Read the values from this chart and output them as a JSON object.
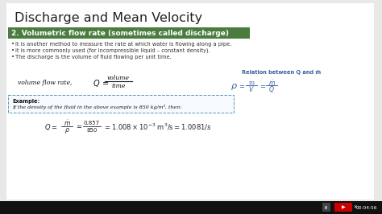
{
  "bg_color": "#e8e8e8",
  "slide_bg": "#ffffff",
  "title": "Discharge and Mean Velocity",
  "title_color": "#222222",
  "title_fontsize": 11.5,
  "section_bg": "#4a7c3f",
  "section_text": "2. Volumetric flow rate (sometimes called discharge)",
  "section_color": "#ffffff",
  "section_fontsize": 6.5,
  "bullets": [
    "It is another method to measure the rate at which water is flowing along a pipe.",
    "It is more commonly used (for incompressible liquid – constant density).",
    "The discharge is the volume of fluid flowing per unit time."
  ],
  "bullet_fontsize": 4.8,
  "relation_label": "Relation between Q and ṁ",
  "relation_color": "#3a5fa0",
  "relation_label_fontsize": 4.8,
  "example_border_color": "#5599bb",
  "example_bold": "Example:",
  "example_text": "If the density of the fluid in the above example is 850 kg/m³, then:",
  "example_fontsize": 4.5,
  "bottom_bar_color": "#111111",
  "timestamp": "00:04:56",
  "youtube_color": "#cc0000"
}
